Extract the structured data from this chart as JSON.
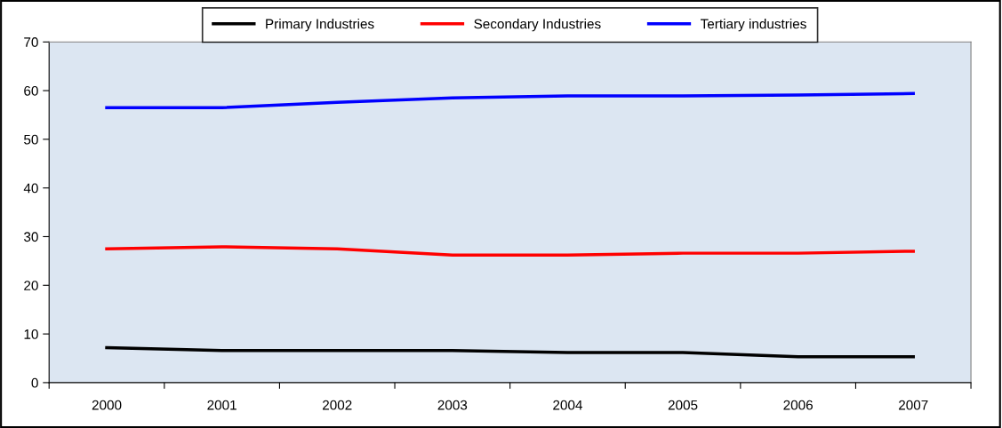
{
  "chart_data": {
    "type": "line",
    "categories": [
      "2000",
      "2001",
      "2002",
      "2003",
      "2004",
      "2005",
      "2006",
      "2007"
    ],
    "series": [
      {
        "name": "Primary Industries",
        "color": "#000000",
        "values": [
          7.2,
          6.6,
          6.6,
          6.6,
          6.2,
          6.2,
          5.3,
          5.3
        ]
      },
      {
        "name": "Secondary Industries",
        "color": "#ff0000",
        "values": [
          27.5,
          27.9,
          27.5,
          26.2,
          26.2,
          26.6,
          26.6,
          27.0
        ]
      },
      {
        "name": "Tertiary industries",
        "color": "#0000ff",
        "values": [
          56.5,
          56.5,
          57.6,
          58.5,
          58.9,
          58.9,
          59.1,
          59.4
        ]
      }
    ],
    "ylim": [
      0,
      70
    ],
    "yticks": [
      0,
      10,
      20,
      30,
      40,
      50,
      60,
      70
    ],
    "grid": false,
    "legend": "top",
    "marker": "none",
    "line_style": "solid"
  }
}
